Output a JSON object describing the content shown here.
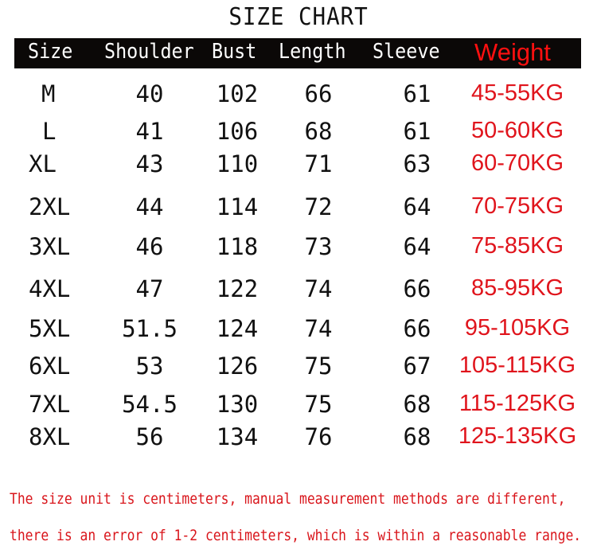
{
  "title": "SIZE CHART",
  "headers": [
    "Size",
    "Shoulder",
    "Bust",
    "Length",
    "Sleeve",
    "Weight"
  ],
  "rows": [
    [
      "M",
      "40",
      "102",
      "66",
      "61",
      "45-55KG"
    ],
    [
      "L",
      "41",
      "106",
      "68",
      "61",
      "50-60KG"
    ],
    [
      "XL",
      "43",
      "110",
      "71",
      "63",
      "60-70KG"
    ],
    [
      "2XL",
      "44",
      "114",
      "72",
      "64",
      "70-75KG"
    ],
    [
      "3XL",
      "46",
      "118",
      "73",
      "64",
      "75-85KG"
    ],
    [
      "4XL",
      "47",
      "122",
      "74",
      "66",
      "85-95KG"
    ],
    [
      "5XL",
      "51.5",
      "124",
      "74",
      "66",
      "95-105KG"
    ],
    [
      "6XL",
      "53",
      "126",
      "75",
      "67",
      "105-115KG"
    ],
    [
      "7XL",
      "54.5",
      "130",
      "75",
      "68",
      "115-125KG"
    ],
    [
      "8XL",
      "56",
      "134",
      "76",
      "68",
      "125-135KG"
    ]
  ],
  "notes": [
    "The size unit is centimeters, manual measurement methods are different,",
    "there is an error of 1-2 centimeters, which is within a reasonable range."
  ],
  "colors": {
    "header_bg": "#0b0807",
    "weight_text": "#e0141c",
    "note_text": "#d9151b"
  }
}
